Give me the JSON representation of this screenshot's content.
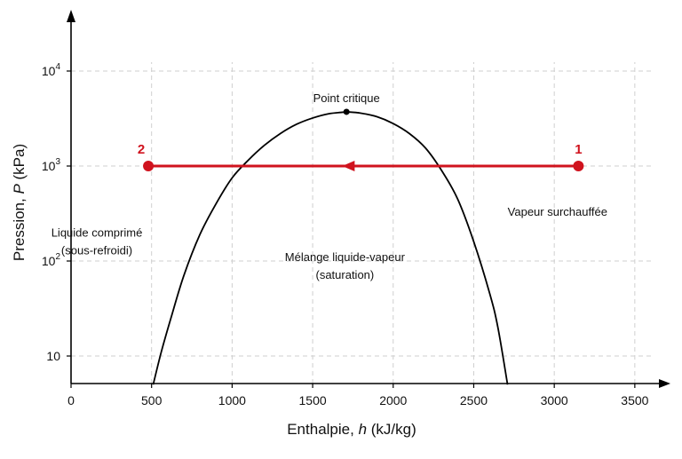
{
  "chart_data": {
    "type": "line",
    "xlabel_parts": [
      "Enthalpie, ",
      "h",
      " (kJ/kg)"
    ],
    "ylabel_parts": [
      "Pression, ",
      "P",
      " (kPa)"
    ],
    "xlim": [
      0,
      3600
    ],
    "x_ticks": [
      0,
      500,
      1000,
      1500,
      2000,
      2500,
      3000,
      3500
    ],
    "y_scale": "log",
    "ylim": [
      5,
      30000
    ],
    "y_ticks": [
      {
        "value": 10,
        "base": "10",
        "exp": ""
      },
      {
        "value": 100,
        "base": "10",
        "exp": "2"
      },
      {
        "value": 1000,
        "base": "10",
        "exp": "3"
      },
      {
        "value": 10000,
        "base": "10",
        "exp": "4"
      }
    ],
    "grid": true,
    "dome_curve": {
      "x": [
        510,
        560,
        620,
        700,
        800,
        900,
        1000,
        1100,
        1200,
        1300,
        1400,
        1500,
        1600,
        1700,
        1710,
        1800,
        1900,
        2000,
        2100,
        2200,
        2300,
        2400,
        2500,
        2600,
        2650,
        2710
      ],
      "y": [
        5,
        11,
        25,
        70,
        190,
        400,
        750,
        1150,
        1650,
        2200,
        2750,
        3200,
        3550,
        3700,
        3720,
        3600,
        3300,
        2800,
        2200,
        1550,
        900,
        450,
        160,
        45,
        20,
        5
      ]
    },
    "critical_point": {
      "x": 1710,
      "y": 3720,
      "label": "Point critique"
    },
    "process": {
      "color": "#d0131e",
      "start": {
        "x": 3150,
        "y": 1000,
        "label": "1"
      },
      "end": {
        "x": 480,
        "y": 1000,
        "label": "2"
      },
      "arrow_x": 1700
    },
    "regions": [
      {
        "lines": [
          "Liquide comprimé",
          "(sous-refroidi)"
        ],
        "x": 160,
        "y": 180
      },
      {
        "lines": [
          "Mélange liquide-vapeur",
          "(saturation)"
        ],
        "x": 1700,
        "y": 100
      },
      {
        "lines": [
          "Vapeur surchauffée"
        ],
        "x": 3020,
        "y": 300
      }
    ]
  }
}
